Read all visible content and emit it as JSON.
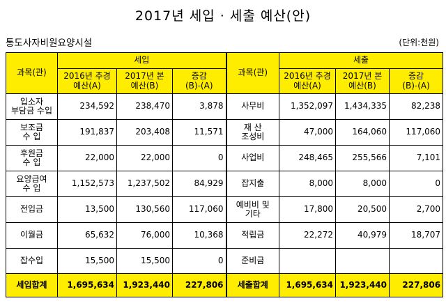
{
  "title": "2017년 세입 · 세출 예산(안)",
  "org_name": "통도사자비원요양시설",
  "unit": "(단위:천원)",
  "header": {
    "revenue_group": "세입",
    "expense_group": "세출",
    "category": "과목(관)",
    "col_prev_line1": "2016년 추경",
    "col_prev_line2": "예산(A)",
    "col_curr_line1": "2017년 본",
    "col_curr_line2": "예산(B)",
    "col_diff_line1": "증감",
    "col_diff_line2": "(B)-(A)"
  },
  "rows": [
    {
      "rev_label_1": "입소자",
      "rev_label_2": "부담금 수입",
      "rev_prev": "234,592",
      "rev_curr": "238,470",
      "rev_diff": "3,878",
      "exp_label_1": "사무비",
      "exp_label_2": "",
      "exp_prev": "1,352,097",
      "exp_curr": "1,434,335",
      "exp_diff": "82,238"
    },
    {
      "rev_label_1": "보조금",
      "rev_label_2": "수    입",
      "rev_prev": "191,837",
      "rev_curr": "203,408",
      "rev_diff": "11,571",
      "exp_label_1": "재  산",
      "exp_label_2": "조성비",
      "exp_prev": "47,000",
      "exp_curr": "164,060",
      "exp_diff": "117,060"
    },
    {
      "rev_label_1": "후원금",
      "rev_label_2": "수    입",
      "rev_prev": "22,000",
      "rev_curr": "22,000",
      "rev_diff": "0",
      "exp_label_1": "사업비",
      "exp_label_2": "",
      "exp_prev": "248,465",
      "exp_curr": "255,566",
      "exp_diff": "7,101"
    },
    {
      "rev_label_1": "요양급여",
      "rev_label_2": "수    입",
      "rev_prev": "1,152,573",
      "rev_curr": "1,237,502",
      "rev_diff": "84,929",
      "exp_label_1": "잡지출",
      "exp_label_2": "",
      "exp_prev": "8,000",
      "exp_curr": "8,000",
      "exp_diff": "0"
    },
    {
      "rev_label_1": "전입금",
      "rev_label_2": "",
      "rev_prev": "13,500",
      "rev_curr": "130,560",
      "rev_diff": "117,060",
      "exp_label_1": "예비비 및",
      "exp_label_2": "기타",
      "exp_prev": "17,800",
      "exp_curr": "20,500",
      "exp_diff": "2,700"
    },
    {
      "rev_label_1": "이월금",
      "rev_label_2": "",
      "rev_prev": "65,632",
      "rev_curr": "76,000",
      "rev_diff": "10,368",
      "exp_label_1": "적립금",
      "exp_label_2": "",
      "exp_prev": "22,272",
      "exp_curr": "40,979",
      "exp_diff": "18,707"
    },
    {
      "rev_label_1": "잡수입",
      "rev_label_2": "",
      "rev_prev": "15,500",
      "rev_curr": "15,500",
      "rev_diff": "0",
      "exp_label_1": "준비금",
      "exp_label_2": "",
      "exp_prev": "",
      "exp_curr": "",
      "exp_diff": ""
    }
  ],
  "totals": {
    "rev_label": "세입합계",
    "rev_prev": "1,695,634",
    "rev_curr": "1,923,440",
    "rev_diff": "227,806",
    "exp_label": "세출합계",
    "exp_prev": "1,695,634",
    "exp_curr": "1,923,440",
    "exp_diff": "227,806"
  },
  "colors": {
    "header_bg": "#ffed00"
  }
}
